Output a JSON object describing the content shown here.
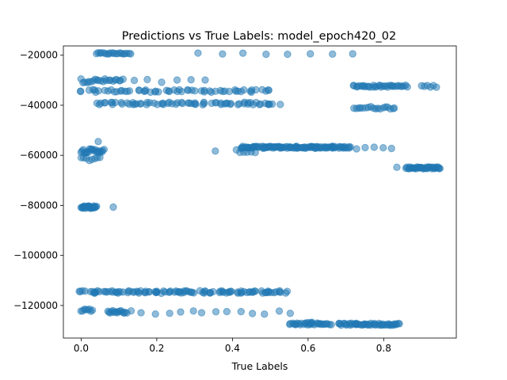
{
  "chart_data": {
    "type": "scatter",
    "title": "Predictions vs True Labels: model_epoch420_02",
    "xlabel": "True Labels",
    "ylabel": "",
    "xlim": [
      -0.047,
      0.992
    ],
    "ylim": [
      -133000,
      -16300
    ],
    "xticks": [
      0.0,
      0.2,
      0.4,
      0.6,
      0.8
    ],
    "xtick_labels": [
      "0.0",
      "0.2",
      "0.4",
      "0.6",
      "0.8"
    ],
    "yticks": [
      -20000,
      -40000,
      -60000,
      -80000,
      -100000,
      -120000
    ],
    "ytick_labels": [
      "−20000",
      "−40000",
      "−60000",
      "−80000",
      "−100000",
      "−120000"
    ],
    "marker_color": "#1f77b4",
    "marker_alpha": 0.5,
    "clusters": [
      {
        "x_start": 0.04,
        "x_end": 0.13,
        "y": -19300,
        "count": 20,
        "jitter": 300
      },
      {
        "x_start": 0.31,
        "x_end": 0.72,
        "y": -19400,
        "count": 8,
        "jitter": 300
      },
      {
        "x_start": 0.0,
        "x_end": 0.11,
        "y": -30200,
        "count": 22,
        "jitter": 800
      },
      {
        "x_start": 0.14,
        "x_end": 0.33,
        "y": -30400,
        "count": 6,
        "jitter": 800
      },
      {
        "x_start": 0.0,
        "x_end": 0.5,
        "y": -34300,
        "count": 60,
        "jitter": 500
      },
      {
        "x_start": 0.04,
        "x_end": 0.52,
        "y": -39300,
        "count": 70,
        "jitter": 500
      },
      {
        "x_start": 0.72,
        "x_end": 0.86,
        "y": -32400,
        "count": 35,
        "jitter": 400
      },
      {
        "x_start": 0.9,
        "x_end": 0.94,
        "y": -32400,
        "count": 6,
        "jitter": 400
      },
      {
        "x_start": 0.72,
        "x_end": 0.83,
        "y": -41000,
        "count": 18,
        "jitter": 500
      },
      {
        "x_start": 0.0,
        "x_end": 0.06,
        "y": -58200,
        "count": 22,
        "jitter": 800
      },
      {
        "x_start": 0.0,
        "x_end": 0.05,
        "y": -61500,
        "count": 8,
        "jitter": 800
      },
      {
        "x_start": 0.04,
        "x_end": 0.05,
        "y": -54500,
        "count": 1,
        "jitter": 0
      },
      {
        "x_start": 0.42,
        "x_end": 0.71,
        "y": -56800,
        "count": 110,
        "jitter": 400
      },
      {
        "x_start": 0.41,
        "x_end": 0.46,
        "y": -58300,
        "count": 6,
        "jitter": 600
      },
      {
        "x_start": 0.73,
        "x_end": 0.82,
        "y": -57000,
        "count": 5,
        "jitter": 500
      },
      {
        "x_start": 0.35,
        "x_end": 0.36,
        "y": -58300,
        "count": 1,
        "jitter": 0
      },
      {
        "x_start": 0.86,
        "x_end": 0.95,
        "y": -65000,
        "count": 40,
        "jitter": 400
      },
      {
        "x_start": 0.83,
        "x_end": 0.84,
        "y": -64800,
        "count": 1,
        "jitter": 0
      },
      {
        "x_start": 0.0,
        "x_end": 0.04,
        "y": -80700,
        "count": 25,
        "jitter": 500
      },
      {
        "x_start": 0.08,
        "x_end": 0.09,
        "y": -80700,
        "count": 1,
        "jitter": 0
      },
      {
        "x_start": 0.0,
        "x_end": 0.54,
        "y": -114600,
        "count": 110,
        "jitter": 500
      },
      {
        "x_start": 0.0,
        "x_end": 0.03,
        "y": -121800,
        "count": 8,
        "jitter": 500
      },
      {
        "x_start": 0.07,
        "x_end": 0.12,
        "y": -122500,
        "count": 15,
        "jitter": 500
      },
      {
        "x_start": 0.13,
        "x_end": 0.55,
        "y": -122800,
        "count": 14,
        "jitter": 700
      },
      {
        "x_start": 0.55,
        "x_end": 0.66,
        "y": -127300,
        "count": 30,
        "jitter": 400
      },
      {
        "x_start": 0.68,
        "x_end": 0.84,
        "y": -127500,
        "count": 50,
        "jitter": 400
      },
      {
        "x_start": 0.6,
        "x_end": 0.61,
        "y": -126800,
        "count": 3,
        "jitter": 300
      }
    ]
  }
}
